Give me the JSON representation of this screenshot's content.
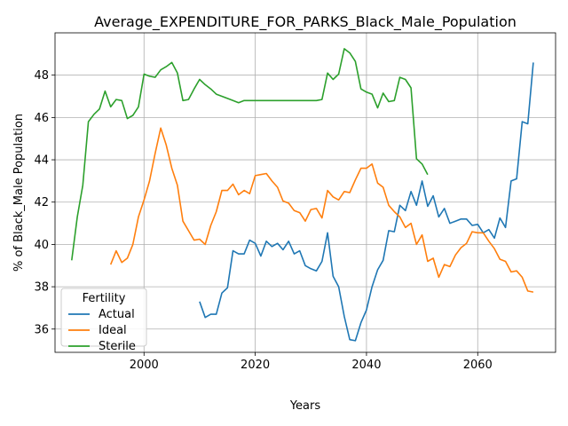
{
  "chart_data": {
    "type": "line",
    "title": "Average_EXPENDITURE_FOR_PARKS_Black_Male_Population",
    "xlabel": "Years",
    "ylabel": "% of Black_Male Population",
    "xlim": [
      1984,
      2074
    ],
    "ylim": [
      34.9,
      50.0
    ],
    "xticks": [
      2000,
      2020,
      2040,
      2060
    ],
    "yticks": [
      36,
      38,
      40,
      42,
      44,
      46,
      48
    ],
    "grid": true,
    "legend": {
      "title": "Fertility",
      "placement": "lower-left"
    },
    "series": [
      {
        "name": "Actual",
        "color": "#1f77b4",
        "x": [
          2010,
          2011,
          2012,
          2013,
          2014,
          2015,
          2016,
          2017,
          2018,
          2019,
          2020,
          2021,
          2022,
          2023,
          2024,
          2025,
          2026,
          2027,
          2028,
          2029,
          2030,
          2031,
          2032,
          2033,
          2034,
          2035,
          2036,
          2037,
          2038,
          2039,
          2040,
          2041,
          2042,
          2043,
          2044,
          2045,
          2046,
          2047,
          2048,
          2049,
          2050,
          2051,
          2052,
          2053,
          2054,
          2055,
          2056,
          2057,
          2058,
          2059,
          2060,
          2061,
          2062,
          2063,
          2064,
          2065,
          2066,
          2067,
          2068,
          2069,
          2070
        ],
        "values": [
          37.3,
          36.55,
          36.7,
          36.7,
          37.7,
          37.95,
          39.7,
          39.55,
          39.55,
          40.2,
          40.05,
          39.45,
          40.15,
          39.9,
          40.05,
          39.75,
          40.15,
          39.55,
          39.7,
          39.0,
          38.85,
          38.75,
          39.2,
          40.55,
          38.5,
          38.0,
          36.6,
          35.5,
          35.45,
          36.3,
          36.9,
          38.0,
          38.8,
          39.25,
          40.65,
          40.6,
          41.85,
          41.6,
          42.5,
          41.85,
          43.0,
          41.8,
          42.3,
          41.3,
          41.7,
          41.0,
          41.1,
          41.2,
          41.2,
          40.9,
          40.95,
          40.55,
          40.7,
          40.3,
          41.25,
          40.8,
          43.0,
          43.1,
          45.8,
          45.7,
          48.6
        ]
      },
      {
        "name": "Ideal",
        "color": "#ff7f0e",
        "x": [
          1994,
          1995,
          1996,
          1997,
          1998,
          1999,
          2000,
          2001,
          2002,
          2003,
          2004,
          2005,
          2006,
          2007,
          2008,
          2009,
          2010,
          2011,
          2012,
          2013,
          2014,
          2015,
          2016,
          2017,
          2018,
          2019,
          2020,
          2021,
          2022,
          2023,
          2024,
          2025,
          2026,
          2027,
          2028,
          2029,
          2030,
          2031,
          2032,
          2033,
          2034,
          2035,
          2036,
          2037,
          2038,
          2039,
          2040,
          2041,
          2042,
          2043,
          2044,
          2045,
          2046,
          2047,
          2048,
          2049,
          2050,
          2051,
          2052,
          2053,
          2054,
          2055,
          2056,
          2057,
          2058,
          2059,
          2060,
          2061,
          2062,
          2063,
          2064,
          2065,
          2066,
          2067,
          2068,
          2069,
          2070
        ],
        "values": [
          39.05,
          39.7,
          39.15,
          39.35,
          40.0,
          41.3,
          42.1,
          43.0,
          44.3,
          45.5,
          44.7,
          43.6,
          42.8,
          41.1,
          40.65,
          40.2,
          40.25,
          40.0,
          40.9,
          41.55,
          42.55,
          42.55,
          42.85,
          42.35,
          42.55,
          42.4,
          43.25,
          43.3,
          43.35,
          43.0,
          42.7,
          42.05,
          41.95,
          41.6,
          41.5,
          41.1,
          41.65,
          41.7,
          41.25,
          42.55,
          42.25,
          42.1,
          42.5,
          42.45,
          43.05,
          43.6,
          43.6,
          43.8,
          42.9,
          42.7,
          41.85,
          41.55,
          41.3,
          40.8,
          41.0,
          40.0,
          40.45,
          39.2,
          39.35,
          38.45,
          39.05,
          38.95,
          39.5,
          39.85,
          40.05,
          40.6,
          40.55,
          40.55,
          40.15,
          39.8,
          39.3,
          39.2,
          38.7,
          38.75,
          38.45,
          37.8,
          37.75
        ]
      },
      {
        "name": "Sterile",
        "color": "#2ca02c",
        "x": [
          1987,
          1988,
          1989,
          1990,
          1991,
          1992,
          1993,
          1994,
          1995,
          1996,
          1997,
          1998,
          1999,
          2000,
          2001,
          2002,
          2003,
          2004,
          2005,
          2006,
          2007,
          2008,
          2009,
          2010,
          2011,
          2012,
          2013,
          2014,
          2015,
          2016,
          2017,
          2018,
          2019,
          2020,
          2021,
          2022,
          2023,
          2024,
          2025,
          2026,
          2027,
          2028,
          2029,
          2030,
          2031,
          2032,
          2033,
          2034,
          2035,
          2036,
          2037,
          2038,
          2039,
          2040,
          2041,
          2042,
          2043,
          2044,
          2045,
          2046,
          2047,
          2048,
          2049,
          2050,
          2051
        ],
        "values": [
          39.25,
          41.3,
          42.8,
          45.8,
          46.15,
          46.4,
          47.25,
          46.5,
          46.85,
          46.8,
          45.95,
          46.1,
          46.5,
          48.05,
          47.95,
          47.9,
          48.25,
          48.4,
          48.6,
          48.1,
          46.8,
          46.85,
          47.35,
          47.8,
          47.55,
          47.35,
          47.1,
          47.0,
          46.9,
          46.8,
          46.7,
          46.8,
          46.8,
          46.8,
          46.8,
          46.8,
          46.8,
          46.8,
          46.8,
          46.8,
          46.8,
          46.8,
          46.8,
          46.8,
          46.8,
          46.85,
          48.1,
          47.8,
          48.05,
          49.25,
          49.05,
          48.65,
          47.35,
          47.2,
          47.1,
          46.45,
          47.15,
          46.75,
          46.8,
          47.9,
          47.8,
          47.4,
          44.05,
          43.8,
          43.3
        ]
      }
    ]
  }
}
